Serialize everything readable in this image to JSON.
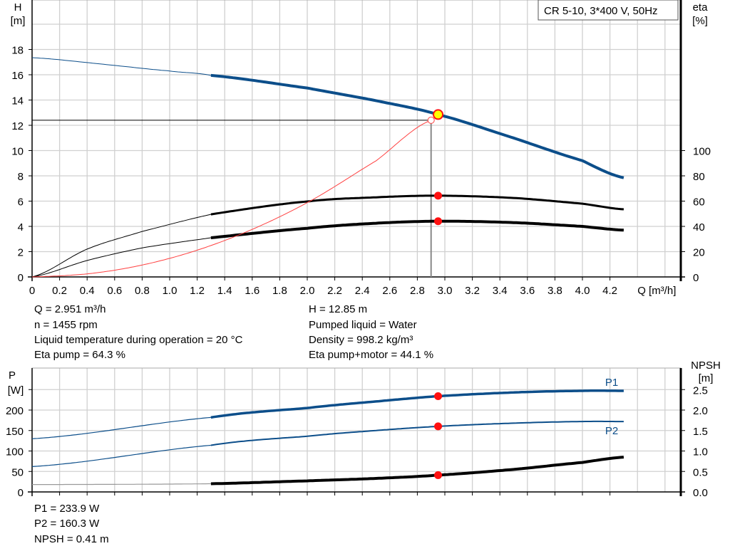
{
  "chart_data": [
    {
      "type": "line",
      "title": "CR 5-10, 3*400 V, 50Hz",
      "xlabel": "Q [m³/h]",
      "ylabel": "H [m]",
      "ylabel_left": [
        "H",
        "[m]"
      ],
      "ylabel_right": [
        "eta",
        "[%]"
      ],
      "xlim": [
        0,
        4.7
      ],
      "ylim": [
        0,
        22
      ],
      "y2lim": [
        0,
        220
      ],
      "grid": true,
      "x_ticks": [
        "0",
        "0.2",
        "0.4",
        "0.6",
        "0.8",
        "1.0",
        "1.2",
        "1.4",
        "1.6",
        "1.8",
        "2.0",
        "2.2",
        "2.4",
        "2.6",
        "2.8",
        "3.0",
        "3.2",
        "3.4",
        "3.6",
        "3.8",
        "4.0",
        "4.2"
      ],
      "y_ticks": [
        "0",
        "2",
        "4",
        "6",
        "8",
        "10",
        "12",
        "14",
        "16",
        "18"
      ],
      "y2_ticks": [
        "0",
        "20",
        "40",
        "60",
        "80",
        "100"
      ],
      "series": [
        {
          "key": "H",
          "color": "#0c4e8a",
          "axis": "left",
          "thick_from": 1.3,
          "x": [
            0,
            0.5,
            1.0,
            1.3,
            2.0,
            2.5,
            2.951,
            3.5,
            4.0,
            4.3
          ],
          "y": [
            17.35,
            16.85,
            16.3,
            15.95,
            14.95,
            13.95,
            12.85,
            11.0,
            9.2,
            7.85
          ]
        },
        {
          "key": "eta_pump",
          "color": "#000000",
          "axis": "right",
          "thick_from": 1.3,
          "x": [
            0,
            0.4,
            0.8,
            1.3,
            2.0,
            2.5,
            2.951,
            3.5,
            4.0,
            4.3
          ],
          "y": [
            0,
            22,
            36,
            49.5,
            59.7,
            63,
            64.3,
            62.5,
            58,
            53.5
          ]
        },
        {
          "key": "eta_pump_motor",
          "color": "#000000",
          "axis": "right",
          "thick_from": 1.3,
          "x": [
            0,
            0.4,
            0.8,
            1.3,
            2.0,
            2.5,
            2.951,
            3.5,
            4.0,
            4.3
          ],
          "y": [
            0,
            13,
            23,
            31,
            38.5,
            42.5,
            44.1,
            43,
            40,
            37
          ]
        },
        {
          "key": "system_curve",
          "color": "#ff4040",
          "axis": "left",
          "x": [
            0,
            0.5,
            1.0,
            1.5,
            2.0,
            2.5,
            2.9
          ],
          "y": [
            0,
            0.37,
            1.47,
            3.31,
            5.88,
            9.19,
            12.4
          ]
        }
      ],
      "duty_point": {
        "Q": 2.951,
        "H": 12.85,
        "eta_pump": 64.3,
        "eta_pump_motor": 44.1
      },
      "requested_point": {
        "Q": 2.9,
        "H": 12.4
      }
    },
    {
      "type": "line",
      "xlim": [
        0,
        4.7
      ],
      "ylabel_left": [
        "P",
        "[W]"
      ],
      "ylabel_right": [
        "NPSH",
        "[m]"
      ],
      "ylim": [
        0,
        300
      ],
      "y2lim": [
        0,
        3.0
      ],
      "grid": true,
      "y_ticks": [
        "0",
        "50",
        "100",
        "150",
        "200"
      ],
      "y2_ticks": [
        "0.0",
        "0.5",
        "1.0",
        "1.5",
        "2.0",
        "2.5"
      ],
      "series": [
        {
          "key": "P1",
          "name": "P1",
          "color": "#0c4e8a",
          "axis": "left",
          "thick_from": 1.3,
          "width": 3.5,
          "x": [
            0,
            1.3,
            2.0,
            2.5,
            2.951,
            3.5,
            4.0,
            4.3
          ],
          "y": [
            130,
            182,
            205,
            221,
            233.9,
            243,
            247,
            247
          ]
        },
        {
          "key": "P2",
          "name": "P2",
          "color": "#0c4e8a",
          "axis": "left",
          "thick_from": 1.3,
          "width": 2,
          "x": [
            0,
            1.3,
            2.0,
            2.5,
            2.951,
            3.5,
            4.0,
            4.3
          ],
          "y": [
            62,
            114,
            136,
            150,
            160.3,
            168,
            172,
            172
          ]
        },
        {
          "key": "NPSH",
          "color": "#000000",
          "axis": "right",
          "thick_from": 1.3,
          "width": 4,
          "x": [
            0,
            1.3,
            2.0,
            2.5,
            2.951,
            3.5,
            4.0,
            4.3
          ],
          "y": [
            0.18,
            0.2,
            0.27,
            0.33,
            0.41,
            0.55,
            0.72,
            0.85
          ]
        }
      ]
    }
  ],
  "info": {
    "q": "Q = 2.951 m³/h",
    "h": "H = 12.85 m",
    "n": "n = 1455 rpm",
    "liquid": "Pumped liquid = Water",
    "temp": "Liquid temperature during operation = 20 °C",
    "density": "Density = 998.2 kg/m³",
    "eta_pump": "Eta pump = 64.3 %",
    "eta_pm": "Eta pump+motor = 44.1 %",
    "p1": "P1 = 233.9 W",
    "p2": "P2 = 160.3 W",
    "npsh": "NPSH = 0.41 m"
  }
}
